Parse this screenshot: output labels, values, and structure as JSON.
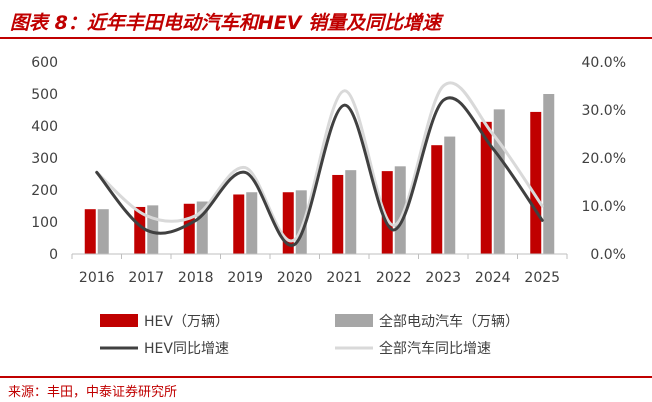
{
  "title": "图表 8：近年丰田电动汽车和HEV 销量及同比增速",
  "source": "来源：丰田，中泰证券研究所",
  "chart_data": {
    "type": "bar",
    "categories": [
      "2016",
      "2017",
      "2018",
      "2019",
      "2020",
      "2021",
      "2022",
      "2023",
      "2024",
      "2025"
    ],
    "series": [
      {
        "name": "HEV（万辆）",
        "kind": "bar",
        "axis": "left",
        "color": "#c00000",
        "values": [
          140,
          147,
          157,
          186,
          193,
          247,
          259,
          340,
          413,
          444
        ]
      },
      {
        "name": "全部电动汽车（万辆）",
        "kind": "bar",
        "axis": "left",
        "color": "#a6a6a6",
        "values": [
          140,
          152,
          164,
          193,
          199,
          262,
          274,
          367,
          452,
          500
        ]
      },
      {
        "name": "HEV同比增速",
        "kind": "line",
        "axis": "right",
        "color": "#404040",
        "values": [
          17.0,
          5.0,
          7.0,
          17.0,
          2.0,
          31.0,
          5.0,
          32.0,
          22.0,
          7.0
        ]
      },
      {
        "name": "全部汽车同比增速",
        "kind": "line",
        "axis": "right",
        "color": "#d9d9d9",
        "values": [
          17.0,
          8.0,
          8.0,
          18.0,
          3.0,
          34.0,
          6.0,
          35.0,
          25.0,
          10.0
        ]
      }
    ],
    "ylim_left": [
      0,
      600
    ],
    "yticks_left": [
      "0",
      "100",
      "200",
      "300",
      "400",
      "500",
      "600"
    ],
    "ylim_right": [
      0,
      40
    ],
    "yticks_right": [
      "0.0%",
      "10.0%",
      "20.0%",
      "30.0%",
      "40.0%"
    ],
    "grid": false,
    "legend": "bottom"
  }
}
